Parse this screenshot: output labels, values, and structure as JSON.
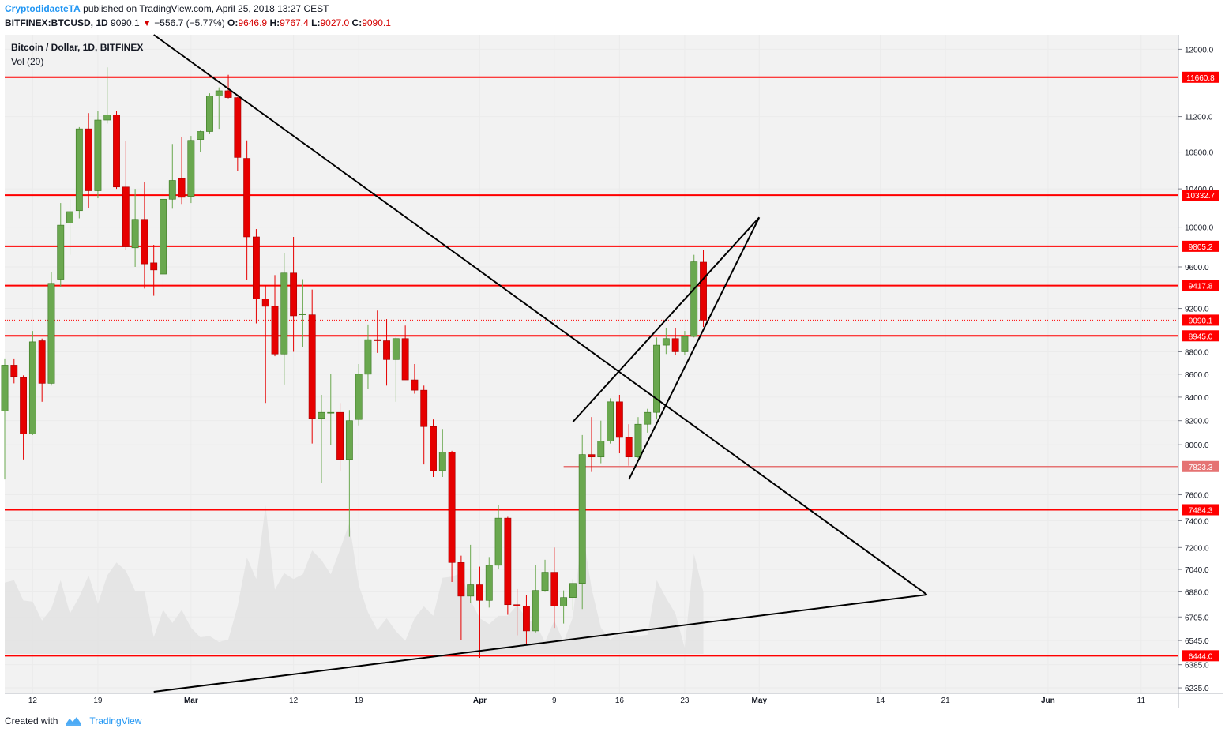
{
  "header": {
    "author": "CryptodidacteTA",
    "published_text": "published on TradingView.com, April 25, 2018 13:27 CEST",
    "symbol": "BITFINEX:BTCUSD, 1D",
    "last": "9090.1",
    "change": "−556.7 (−5.77%)",
    "o_label": "O:",
    "o": "9646.9",
    "h_label": "H:",
    "h": "9767.4",
    "l_label": "L:",
    "l": "9027.0",
    "c_label": "C:",
    "c": "9090.1"
  },
  "legend": {
    "series": "Bitcoin / Dollar, 1D, BITFINEX",
    "volume": "Vol (20)"
  },
  "footer": {
    "created_with": "Created with",
    "brand": "TradingView"
  },
  "colors": {
    "up": "#6aa84f",
    "down": "#e60000",
    "level": "#ff0000",
    "level_soft": "#e57373",
    "volume": "#e3e3e3",
    "grid": "#ebebeb",
    "trendline": "#000000",
    "background": "#f2f2f2"
  },
  "chart_data": {
    "type": "candlestick",
    "interval": "1D",
    "y_scale": "log",
    "ylim": [
      6200,
      12180
    ],
    "y_ticks": [
      "12000.0",
      "11200.0",
      "10800.0",
      "10400.0",
      "10000.0",
      "9600.0",
      "9200.0",
      "8800.0",
      "8600.0",
      "8400.0",
      "8200.0",
      "8000.0",
      "7600.0",
      "7400.0",
      "7200.0",
      "7040.0",
      "6880.0",
      "6705.0",
      "6545.0",
      "6385.0",
      "6235.0"
    ],
    "x_ticks": [
      {
        "label": "12",
        "date": "2018-02-12"
      },
      {
        "label": "19",
        "date": "2018-02-19"
      },
      {
        "label": "Mar",
        "date": "2018-03-01"
      },
      {
        "label": "12",
        "date": "2018-03-12"
      },
      {
        "label": "19",
        "date": "2018-03-19"
      },
      {
        "label": "Apr",
        "date": "2018-04-01"
      },
      {
        "label": "9",
        "date": "2018-04-09"
      },
      {
        "label": "16",
        "date": "2018-04-16"
      },
      {
        "label": "23",
        "date": "2018-04-23"
      },
      {
        "label": "May",
        "date": "2018-05-01"
      },
      {
        "label": "14",
        "date": "2018-05-14"
      },
      {
        "label": "21",
        "date": "2018-05-21"
      },
      {
        "label": "Jun",
        "date": "2018-06-01"
      },
      {
        "label": "11",
        "date": "2018-06-11"
      }
    ],
    "xlim": [
      "2018-02-09",
      "2018-06-15"
    ],
    "levels": [
      {
        "value": 11660.8,
        "label": "11660.8"
      },
      {
        "value": 10332.7,
        "label": "10332.7"
      },
      {
        "value": 9805.2,
        "label": "9805.2"
      },
      {
        "value": 9417.8,
        "label": "9417.8"
      },
      {
        "value": 9090.1,
        "label": "9090.1",
        "style": "last-price"
      },
      {
        "value": 8945.0,
        "label": "8945.0"
      },
      {
        "value": 7823.3,
        "label": "7823.3",
        "style": "soft",
        "from": "2018-04-10"
      },
      {
        "value": 7484.3,
        "label": "7484.3"
      },
      {
        "value": 6444.0,
        "label": "6444.0"
      }
    ],
    "trendlines": [
      {
        "from": [
          "2018-02-25",
          12180
        ],
        "to": [
          "2018-05-19",
          6860
        ]
      },
      {
        "from": [
          "2018-02-25",
          6210
        ],
        "to": [
          "2018-05-19",
          6860
        ]
      },
      {
        "from": [
          "2018-04-11",
          8190
        ],
        "to": [
          "2018-05-01",
          10100
        ]
      },
      {
        "from": [
          "2018-04-17",
          7720
        ],
        "to": [
          "2018-05-01",
          10100
        ]
      }
    ],
    "candles": [
      {
        "d": "2018-02-09",
        "o": 8280,
        "h": 8740,
        "l": 7720,
        "c": 8680
      },
      {
        "d": "2018-02-10",
        "o": 8680,
        "h": 8740,
        "l": 8520,
        "c": 8580
      },
      {
        "d": "2018-02-11",
        "o": 8570,
        "h": 8590,
        "l": 7880,
        "c": 8090
      },
      {
        "d": "2018-02-12",
        "o": 8090,
        "h": 8990,
        "l": 8080,
        "c": 8890
      },
      {
        "d": "2018-02-13",
        "o": 8900,
        "h": 8920,
        "l": 8360,
        "c": 8520
      },
      {
        "d": "2018-02-14",
        "o": 8520,
        "h": 9550,
        "l": 8500,
        "c": 9440
      },
      {
        "d": "2018-02-15",
        "o": 9480,
        "h": 10250,
        "l": 9400,
        "c": 10020
      },
      {
        "d": "2018-02-16",
        "o": 10040,
        "h": 10290,
        "l": 9720,
        "c": 10160
      },
      {
        "d": "2018-02-17",
        "o": 10170,
        "h": 11080,
        "l": 10090,
        "c": 11060
      },
      {
        "d": "2018-02-18",
        "o": 11060,
        "h": 11240,
        "l": 10200,
        "c": 10380
      },
      {
        "d": "2018-02-19",
        "o": 10380,
        "h": 11260,
        "l": 10300,
        "c": 11160
      },
      {
        "d": "2018-02-20",
        "o": 11160,
        "h": 11780,
        "l": 11120,
        "c": 11220
      },
      {
        "d": "2018-02-21",
        "o": 11220,
        "h": 11260,
        "l": 10400,
        "c": 10420
      },
      {
        "d": "2018-02-22",
        "o": 10420,
        "h": 10920,
        "l": 9770,
        "c": 9800
      },
      {
        "d": "2018-02-23",
        "o": 9790,
        "h": 10400,
        "l": 9600,
        "c": 10080
      },
      {
        "d": "2018-02-24",
        "o": 10080,
        "h": 10470,
        "l": 9390,
        "c": 9630
      },
      {
        "d": "2018-02-25",
        "o": 9640,
        "h": 9820,
        "l": 9320,
        "c": 9570
      },
      {
        "d": "2018-02-26",
        "o": 9530,
        "h": 10440,
        "l": 9380,
        "c": 10290
      },
      {
        "d": "2018-02-27",
        "o": 10290,
        "h": 10890,
        "l": 10190,
        "c": 10490
      },
      {
        "d": "2018-02-28",
        "o": 10510,
        "h": 10970,
        "l": 10240,
        "c": 10310
      },
      {
        "d": "2018-03-01",
        "o": 10320,
        "h": 10980,
        "l": 10250,
        "c": 10930
      },
      {
        "d": "2018-03-02",
        "o": 10940,
        "h": 11040,
        "l": 10800,
        "c": 11030
      },
      {
        "d": "2018-03-03",
        "o": 11030,
        "h": 11470,
        "l": 11000,
        "c": 11440
      },
      {
        "d": "2018-03-04",
        "o": 11440,
        "h": 11540,
        "l": 11060,
        "c": 11500
      },
      {
        "d": "2018-03-05",
        "o": 11500,
        "h": 11690,
        "l": 11410,
        "c": 11420
      },
      {
        "d": "2018-03-06",
        "o": 11420,
        "h": 11430,
        "l": 10590,
        "c": 10740
      },
      {
        "d": "2018-03-07",
        "o": 10730,
        "h": 10930,
        "l": 9470,
        "c": 9900
      },
      {
        "d": "2018-03-08",
        "o": 9900,
        "h": 9980,
        "l": 9060,
        "c": 9290
      },
      {
        "d": "2018-03-09",
        "o": 9290,
        "h": 9420,
        "l": 8350,
        "c": 9220
      },
      {
        "d": "2018-03-10",
        "o": 9220,
        "h": 9520,
        "l": 8760,
        "c": 8780
      },
      {
        "d": "2018-03-11",
        "o": 8780,
        "h": 9740,
        "l": 8510,
        "c": 9540
      },
      {
        "d": "2018-03-12",
        "o": 9540,
        "h": 9900,
        "l": 8800,
        "c": 9130
      },
      {
        "d": "2018-03-13",
        "o": 9140,
        "h": 9480,
        "l": 8840,
        "c": 9150
      },
      {
        "d": "2018-03-14",
        "o": 9140,
        "h": 9380,
        "l": 8010,
        "c": 8220
      },
      {
        "d": "2018-03-15",
        "o": 8220,
        "h": 8420,
        "l": 7690,
        "c": 8270
      },
      {
        "d": "2018-03-16",
        "o": 8270,
        "h": 8600,
        "l": 8000,
        "c": 8270
      },
      {
        "d": "2018-03-17",
        "o": 8270,
        "h": 8350,
        "l": 7790,
        "c": 7880
      },
      {
        "d": "2018-03-18",
        "o": 7880,
        "h": 8290,
        "l": 7280,
        "c": 8200
      },
      {
        "d": "2018-03-19",
        "o": 8210,
        "h": 8690,
        "l": 8160,
        "c": 8600
      },
      {
        "d": "2018-03-20",
        "o": 8600,
        "h": 9050,
        "l": 8470,
        "c": 8910
      },
      {
        "d": "2018-03-21",
        "o": 8910,
        "h": 9180,
        "l": 8790,
        "c": 8900
      },
      {
        "d": "2018-03-22",
        "o": 8900,
        "h": 9100,
        "l": 8500,
        "c": 8730
      },
      {
        "d": "2018-03-23",
        "o": 8730,
        "h": 8930,
        "l": 8360,
        "c": 8920
      },
      {
        "d": "2018-03-24",
        "o": 8920,
        "h": 9040,
        "l": 8550,
        "c": 8550
      },
      {
        "d": "2018-03-25",
        "o": 8550,
        "h": 8690,
        "l": 8430,
        "c": 8460
      },
      {
        "d": "2018-03-26",
        "o": 8460,
        "h": 8500,
        "l": 7840,
        "c": 8150
      },
      {
        "d": "2018-03-27",
        "o": 8150,
        "h": 8210,
        "l": 7740,
        "c": 7790
      },
      {
        "d": "2018-03-28",
        "o": 7790,
        "h": 8130,
        "l": 7740,
        "c": 7940
      },
      {
        "d": "2018-03-29",
        "o": 7940,
        "h": 7950,
        "l": 6950,
        "c": 7090
      },
      {
        "d": "2018-03-30",
        "o": 7090,
        "h": 7140,
        "l": 6550,
        "c": 6850
      },
      {
        "d": "2018-03-31",
        "o": 6850,
        "h": 7220,
        "l": 6800,
        "c": 6930
      },
      {
        "d": "2018-04-01",
        "o": 6930,
        "h": 7060,
        "l": 6430,
        "c": 6820
      },
      {
        "d": "2018-04-02",
        "o": 6820,
        "h": 7130,
        "l": 6770,
        "c": 7070
      },
      {
        "d": "2018-04-03",
        "o": 7070,
        "h": 7520,
        "l": 7040,
        "c": 7420
      },
      {
        "d": "2018-04-04",
        "o": 7420,
        "h": 7430,
        "l": 6720,
        "c": 6790
      },
      {
        "d": "2018-04-05",
        "o": 6790,
        "h": 6900,
        "l": 6580,
        "c": 6780
      },
      {
        "d": "2018-04-06",
        "o": 6780,
        "h": 6860,
        "l": 6520,
        "c": 6610
      },
      {
        "d": "2018-04-07",
        "o": 6610,
        "h": 7070,
        "l": 6600,
        "c": 6890
      },
      {
        "d": "2018-04-08",
        "o": 6890,
        "h": 7110,
        "l": 6880,
        "c": 7020
      },
      {
        "d": "2018-04-09",
        "o": 7020,
        "h": 7200,
        "l": 6630,
        "c": 6780
      },
      {
        "d": "2018-04-10",
        "o": 6780,
        "h": 6890,
        "l": 6660,
        "c": 6840
      },
      {
        "d": "2018-04-11",
        "o": 6840,
        "h": 6970,
        "l": 6750,
        "c": 6940
      },
      {
        "d": "2018-04-12",
        "o": 6940,
        "h": 8080,
        "l": 6760,
        "c": 7920
      },
      {
        "d": "2018-04-13",
        "o": 7920,
        "h": 8230,
        "l": 7780,
        "c": 7900
      },
      {
        "d": "2018-04-14",
        "o": 7900,
        "h": 8200,
        "l": 7850,
        "c": 8030
      },
      {
        "d": "2018-04-15",
        "o": 8030,
        "h": 8390,
        "l": 8010,
        "c": 8360
      },
      {
        "d": "2018-04-16",
        "o": 8360,
        "h": 8420,
        "l": 7930,
        "c": 8060
      },
      {
        "d": "2018-04-17",
        "o": 8060,
        "h": 8170,
        "l": 7830,
        "c": 7900
      },
      {
        "d": "2018-04-18",
        "o": 7900,
        "h": 8230,
        "l": 7890,
        "c": 8170
      },
      {
        "d": "2018-04-19",
        "o": 8170,
        "h": 8300,
        "l": 8100,
        "c": 8270
      },
      {
        "d": "2018-04-20",
        "o": 8270,
        "h": 8930,
        "l": 8210,
        "c": 8860
      },
      {
        "d": "2018-04-21",
        "o": 8860,
        "h": 9020,
        "l": 8780,
        "c": 8920
      },
      {
        "d": "2018-04-22",
        "o": 8920,
        "h": 9020,
        "l": 8770,
        "c": 8800
      },
      {
        "d": "2018-04-23",
        "o": 8800,
        "h": 8990,
        "l": 8770,
        "c": 8940
      },
      {
        "d": "2018-04-24",
        "o": 8940,
        "h": 9720,
        "l": 8930,
        "c": 9650
      },
      {
        "d": "2018-04-25",
        "o": 9646.9,
        "h": 9767.4,
        "l": 9027.0,
        "c": 9090.1
      }
    ],
    "volume": [
      {
        "d": "2018-02-09",
        "v": 60
      },
      {
        "d": "2018-02-10",
        "v": 62
      },
      {
        "d": "2018-02-11",
        "v": 45
      },
      {
        "d": "2018-02-12",
        "v": 44
      },
      {
        "d": "2018-02-13",
        "v": 28
      },
      {
        "d": "2018-02-14",
        "v": 38
      },
      {
        "d": "2018-02-15",
        "v": 62
      },
      {
        "d": "2018-02-16",
        "v": 34
      },
      {
        "d": "2018-02-17",
        "v": 48
      },
      {
        "d": "2018-02-18",
        "v": 66
      },
      {
        "d": "2018-02-19",
        "v": 42
      },
      {
        "d": "2018-02-20",
        "v": 66
      },
      {
        "d": "2018-02-21",
        "v": 77
      },
      {
        "d": "2018-02-22",
        "v": 70
      },
      {
        "d": "2018-02-23",
        "v": 53
      },
      {
        "d": "2018-02-24",
        "v": 53
      },
      {
        "d": "2018-02-25",
        "v": 14
      },
      {
        "d": "2018-02-26",
        "v": 37
      },
      {
        "d": "2018-02-27",
        "v": 26
      },
      {
        "d": "2018-02-28",
        "v": 37
      },
      {
        "d": "2018-03-01",
        "v": 22
      },
      {
        "d": "2018-03-02",
        "v": 14
      },
      {
        "d": "2018-03-03",
        "v": 15
      },
      {
        "d": "2018-03-04",
        "v": 10
      },
      {
        "d": "2018-03-05",
        "v": 12
      },
      {
        "d": "2018-03-06",
        "v": 40
      },
      {
        "d": "2018-03-07",
        "v": 81
      },
      {
        "d": "2018-03-08",
        "v": 63
      },
      {
        "d": "2018-03-09",
        "v": 125
      },
      {
        "d": "2018-03-10",
        "v": 54
      },
      {
        "d": "2018-03-11",
        "v": 68
      },
      {
        "d": "2018-03-12",
        "v": 63
      },
      {
        "d": "2018-03-13",
        "v": 67
      },
      {
        "d": "2018-03-14",
        "v": 87
      },
      {
        "d": "2018-03-15",
        "v": 79
      },
      {
        "d": "2018-03-16",
        "v": 67
      },
      {
        "d": "2018-03-17",
        "v": 88
      },
      {
        "d": "2018-03-18",
        "v": 110
      },
      {
        "d": "2018-03-19",
        "v": 58
      },
      {
        "d": "2018-03-20",
        "v": 35
      },
      {
        "d": "2018-03-21",
        "v": 20
      },
      {
        "d": "2018-03-22",
        "v": 30
      },
      {
        "d": "2018-03-23",
        "v": 19
      },
      {
        "d": "2018-03-24",
        "v": 11
      },
      {
        "d": "2018-03-25",
        "v": 30
      },
      {
        "d": "2018-03-26",
        "v": 40
      },
      {
        "d": "2018-03-27",
        "v": 32
      },
      {
        "d": "2018-03-28",
        "v": 64
      },
      {
        "d": "2018-03-29",
        "v": 65
      },
      {
        "d": "2018-03-30",
        "v": 68
      },
      {
        "d": "2018-03-31",
        "v": 45
      },
      {
        "d": "2018-04-01",
        "v": 30
      },
      {
        "d": "2018-04-02",
        "v": 25
      },
      {
        "d": "2018-04-03",
        "v": 32
      },
      {
        "d": "2018-04-04",
        "v": 32
      },
      {
        "d": "2018-04-05",
        "v": 41
      },
      {
        "d": "2018-04-06",
        "v": 30
      },
      {
        "d": "2018-04-07",
        "v": 25
      },
      {
        "d": "2018-04-08",
        "v": 10
      },
      {
        "d": "2018-04-09",
        "v": 28
      },
      {
        "d": "2018-04-10",
        "v": 10
      },
      {
        "d": "2018-04-11",
        "v": 31
      },
      {
        "d": "2018-04-12",
        "v": 105
      },
      {
        "d": "2018-04-13",
        "v": 55
      },
      {
        "d": "2018-04-14",
        "v": 22
      },
      {
        "d": "2018-04-15",
        "v": 12
      },
      {
        "d": "2018-04-16",
        "v": 18
      },
      {
        "d": "2018-04-17",
        "v": 16
      },
      {
        "d": "2018-04-18",
        "v": 15
      },
      {
        "d": "2018-04-19",
        "v": 16
      },
      {
        "d": "2018-04-20",
        "v": 62
      },
      {
        "d": "2018-04-21",
        "v": 47
      },
      {
        "d": "2018-04-22",
        "v": 34
      },
      {
        "d": "2018-04-23",
        "v": 5
      },
      {
        "d": "2018-04-24",
        "v": 84
      },
      {
        "d": "2018-04-25",
        "v": 52
      }
    ]
  }
}
